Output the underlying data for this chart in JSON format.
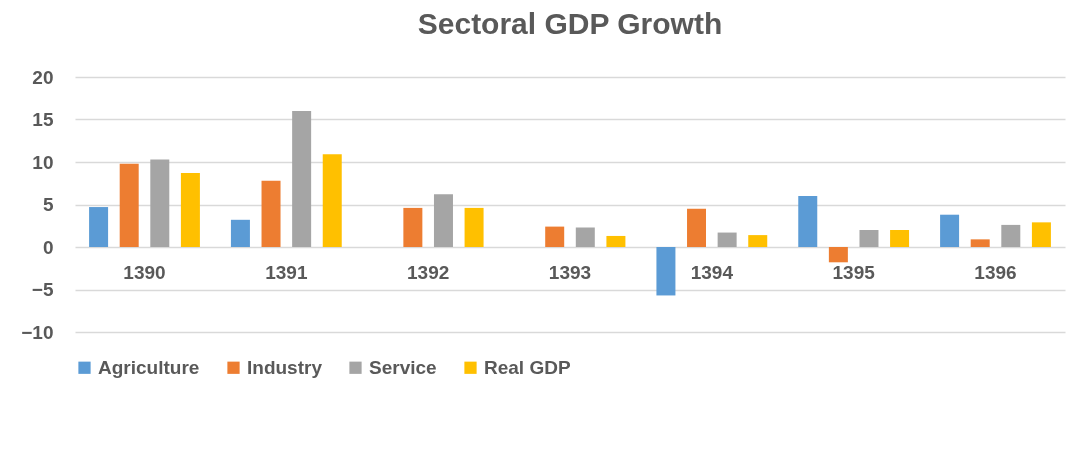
{
  "chart_data": {
    "type": "bar",
    "title": "Sectoral GDP Growth",
    "categories": [
      "1390",
      "1391",
      "1392",
      "1393",
      "1394",
      "1395",
      "1396"
    ],
    "series": [
      {
        "name": "Agriculture",
        "color": "#5b9bd5",
        "values": [
          4.7,
          3.2,
          null,
          null,
          -5.7,
          6.0,
          3.8
        ]
      },
      {
        "name": "Industry",
        "color": "#ed7d31",
        "values": [
          9.8,
          7.8,
          4.6,
          2.4,
          4.5,
          -1.8,
          0.9
        ]
      },
      {
        "name": "Service",
        "color": "#a5a5a5",
        "values": [
          10.3,
          16.0,
          6.2,
          2.3,
          1.7,
          2.0,
          2.6
        ]
      },
      {
        "name": "Real GDP",
        "color": "#ffc000",
        "values": [
          8.7,
          10.9,
          4.6,
          1.3,
          1.4,
          2.0,
          2.9
        ]
      }
    ],
    "ylim": [
      -10,
      20
    ],
    "yticks": [
      -10,
      -5,
      0,
      5,
      10,
      15,
      20
    ],
    "grid": true,
    "legend": "bottom"
  }
}
